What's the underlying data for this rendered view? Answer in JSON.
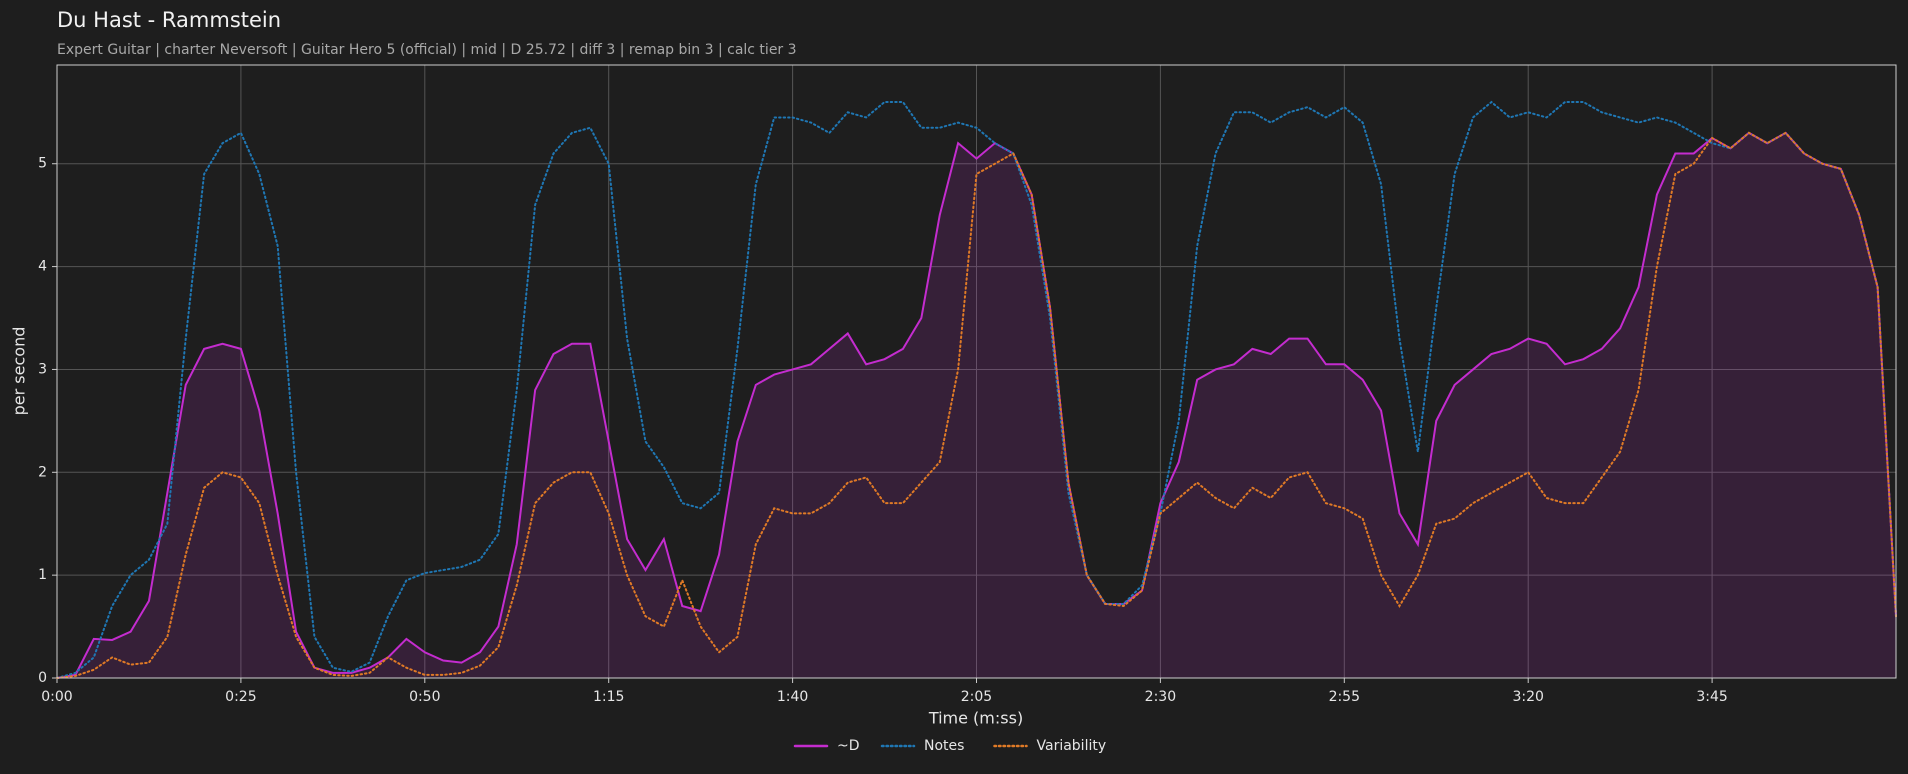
{
  "chart_data": {
    "type": "line",
    "title": "Du Hast - Rammstein",
    "subtitle": "Expert Guitar  |  charter Neversoft  |  Guitar Hero 5 (official)  |  mid  |  D 25.72  |  diff 3  |  remap bin 3  |  calc tier 3",
    "xlabel": "Time (m:ss)",
    "ylabel": "per second",
    "xlim": [
      0,
      250
    ],
    "ylim": [
      0,
      5.96
    ],
    "xticks": [
      {
        "value": 0,
        "label": "0:00"
      },
      {
        "value": 25,
        "label": "0:25"
      },
      {
        "value": 50,
        "label": "0:50"
      },
      {
        "value": 75,
        "label": "1:15"
      },
      {
        "value": 100,
        "label": "1:40"
      },
      {
        "value": 125,
        "label": "2:05"
      },
      {
        "value": 150,
        "label": "2:30"
      },
      {
        "value": 175,
        "label": "2:55"
      },
      {
        "value": 200,
        "label": "3:20"
      },
      {
        "value": 225,
        "label": "3:45"
      }
    ],
    "yticks": [
      0,
      1,
      2,
      3,
      4,
      5
    ],
    "grid": true,
    "legend": "bottom",
    "x": [
      0,
      2.5,
      5,
      7.5,
      10,
      12.5,
      15,
      17.5,
      20,
      22.5,
      25,
      27.5,
      30,
      32.5,
      35,
      37.5,
      40,
      42.5,
      45,
      47.5,
      50,
      52.5,
      55,
      57.5,
      60,
      62.5,
      65,
      67.5,
      70,
      72.5,
      75,
      77.5,
      80,
      82.5,
      85,
      87.5,
      90,
      92.5,
      95,
      97.5,
      100,
      102.5,
      105,
      107.5,
      110,
      112.5,
      115,
      117.5,
      120,
      122.5,
      125,
      127.5,
      130,
      132.5,
      135,
      137.5,
      140,
      142.5,
      145,
      147.5,
      150,
      152.5,
      155,
      157.5,
      160,
      162.5,
      165,
      167.5,
      170,
      172.5,
      175,
      177.5,
      180,
      182.5,
      185,
      187.5,
      190,
      192.5,
      195,
      197.5,
      200,
      202.5,
      205,
      207.5,
      210,
      212.5,
      215,
      217.5,
      220,
      222.5,
      225,
      227.5,
      230,
      232.5,
      235,
      237.5,
      240,
      242.5,
      245,
      247.5,
      250
    ],
    "series": [
      {
        "name": "~D",
        "color": "#c42ccf",
        "style": "solid",
        "fill": true,
        "values": [
          0,
          0.03,
          0.38,
          0.37,
          0.45,
          0.75,
          1.8,
          2.85,
          3.2,
          3.25,
          3.2,
          2.6,
          1.6,
          0.45,
          0.1,
          0.05,
          0.05,
          0.1,
          0.2,
          0.38,
          0.25,
          0.17,
          0.15,
          0.25,
          0.5,
          1.3,
          2.8,
          3.15,
          3.25,
          3.25,
          2.3,
          1.35,
          1.05,
          1.35,
          0.7,
          0.65,
          1.2,
          2.3,
          2.85,
          2.95,
          3.0,
          3.05,
          3.2,
          3.35,
          3.05,
          3.1,
          3.2,
          3.5,
          4.5,
          5.2,
          5.05,
          5.2,
          5.1,
          4.7,
          3.6,
          1.9,
          1.0,
          0.72,
          0.72,
          0.85,
          1.7,
          2.1,
          2.9,
          3.0,
          3.05,
          3.2,
          3.15,
          3.3,
          3.3,
          3.05,
          3.05,
          2.9,
          2.6,
          1.6,
          1.3,
          2.5,
          2.85,
          3.0,
          3.15,
          3.2,
          3.3,
          3.25,
          3.05,
          3.1,
          3.2,
          3.4,
          3.8,
          4.7,
          5.1,
          5.1,
          5.25,
          5.15,
          5.3,
          5.2,
          5.3,
          5.1,
          5.0,
          4.95,
          4.5,
          3.8,
          0.6
        ]
      },
      {
        "name": "Notes",
        "color": "#1f77b4",
        "style": "dotted",
        "fill": false,
        "values": [
          0,
          0.05,
          0.2,
          0.7,
          1.0,
          1.15,
          1.5,
          3.3,
          4.9,
          5.2,
          5.3,
          4.9,
          4.2,
          2.0,
          0.4,
          0.1,
          0.06,
          0.15,
          0.6,
          0.95,
          1.02,
          1.05,
          1.08,
          1.15,
          1.4,
          2.8,
          4.6,
          5.1,
          5.3,
          5.35,
          5.0,
          3.3,
          2.3,
          2.05,
          1.7,
          1.65,
          1.8,
          3.2,
          4.8,
          5.45,
          5.45,
          5.4,
          5.3,
          5.5,
          5.45,
          5.6,
          5.6,
          5.35,
          5.35,
          5.4,
          5.35,
          5.2,
          5.1,
          4.6,
          3.5,
          1.8,
          1.0,
          0.72,
          0.72,
          0.9,
          1.6,
          2.5,
          4.2,
          5.1,
          5.5,
          5.5,
          5.4,
          5.5,
          5.55,
          5.45,
          5.55,
          5.4,
          4.8,
          3.3,
          2.2,
          3.6,
          4.9,
          5.45,
          5.6,
          5.45,
          5.5,
          5.45,
          5.6,
          5.6,
          5.5,
          5.45,
          5.4,
          5.45,
          5.4,
          5.3,
          5.2,
          5.15,
          5.3,
          5.2,
          5.3,
          5.1,
          5.0,
          4.95,
          4.5,
          3.8,
          0.6
        ]
      },
      {
        "name": "Variability",
        "color": "#e07a26",
        "style": "dotted",
        "fill": false,
        "values": [
          0,
          0.02,
          0.08,
          0.2,
          0.13,
          0.15,
          0.4,
          1.2,
          1.85,
          2.0,
          1.95,
          1.7,
          1.0,
          0.4,
          0.1,
          0.03,
          0.02,
          0.05,
          0.2,
          0.1,
          0.03,
          0.03,
          0.05,
          0.12,
          0.3,
          0.9,
          1.7,
          1.9,
          2.0,
          2.0,
          1.6,
          1.0,
          0.6,
          0.5,
          0.95,
          0.5,
          0.25,
          0.4,
          1.3,
          1.65,
          1.6,
          1.6,
          1.7,
          1.9,
          1.95,
          1.7,
          1.7,
          1.9,
          2.1,
          3.0,
          4.9,
          5.0,
          5.1,
          4.7,
          3.6,
          1.9,
          1.0,
          0.72,
          0.7,
          0.85,
          1.6,
          1.75,
          1.9,
          1.75,
          1.65,
          1.85,
          1.75,
          1.95,
          2.0,
          1.7,
          1.65,
          1.55,
          1.0,
          0.7,
          1.0,
          1.5,
          1.55,
          1.7,
          1.8,
          1.9,
          2.0,
          1.75,
          1.7,
          1.7,
          1.95,
          2.2,
          2.8,
          4.0,
          4.9,
          5.0,
          5.25,
          5.15,
          5.3,
          5.2,
          5.3,
          5.1,
          5.0,
          4.95,
          4.5,
          3.8,
          0.6
        ]
      }
    ]
  }
}
